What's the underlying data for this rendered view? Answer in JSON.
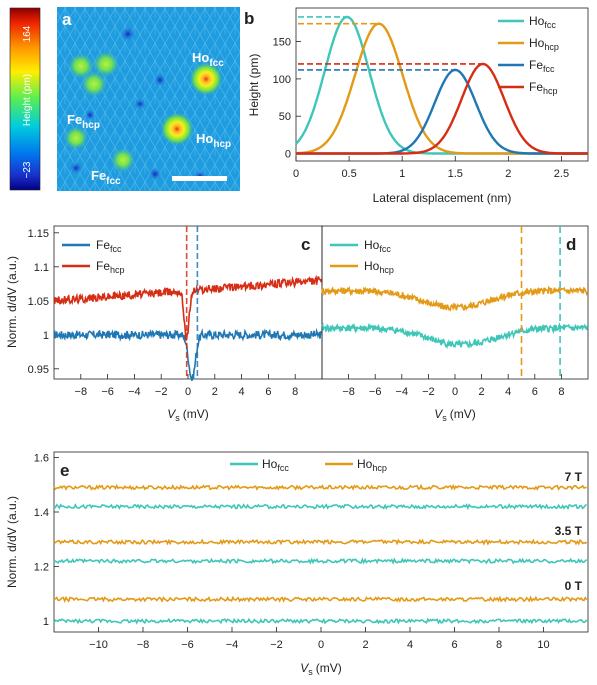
{
  "colors": {
    "ho_fcc": "#3ec6b8",
    "ho_hcp": "#e39a17",
    "fe_fcc": "#1f77b4",
    "fe_hcp": "#d62d14"
  },
  "panel_a": {
    "letter": "a",
    "colorbar": {
      "max": "164",
      "min": "−23",
      "label": "Height (pm)"
    },
    "labels": [
      {
        "main": "Ho",
        "sub": "fcc"
      },
      {
        "main": "Ho",
        "sub": "hcp"
      },
      {
        "main": "Fe",
        "sub": "hcp"
      },
      {
        "main": "Fe",
        "sub": "fcc"
      }
    ]
  },
  "panel_b": {
    "letter": "b",
    "xlabel": "Lateral displacement (nm)",
    "ylabel": "Height (pm)",
    "xticks": [
      "0",
      "0.5",
      "1",
      "1.5",
      "2",
      "2.5"
    ],
    "yticks": [
      "0",
      "50",
      "100",
      "150"
    ]
  },
  "panel_c": {
    "letter": "c",
    "ylabel": "Norm. d/dV (a.u.)",
    "xlabel": "V",
    "xlabel_sub": "s",
    "xlabel_unit": "(mV)",
    "xticks": [
      "−8",
      "−6",
      "−4",
      "−2",
      "0",
      "2",
      "4",
      "6",
      "8"
    ],
    "yticks": [
      "0.95",
      "1",
      "1.05",
      "1.1",
      "1.15"
    ]
  },
  "panel_d": {
    "letter": "d",
    "xlabel": "V",
    "xlabel_sub": "s",
    "xlabel_unit": "(mV)",
    "xticks": [
      "−8",
      "−6",
      "−4",
      "−2",
      "0",
      "2",
      "4",
      "6",
      "8"
    ]
  },
  "panel_e": {
    "letter": "e",
    "ylabel": "Norm. d/dV (a.u.)",
    "xlabel": "V",
    "xlabel_sub": "s",
    "xlabel_unit": "(mV)",
    "xticks": [
      "−10",
      "−8",
      "−6",
      "−4",
      "−2",
      "0",
      "2",
      "4",
      "6",
      "8",
      "10"
    ],
    "yticks": [
      "1",
      "1.2",
      "1.4",
      "1.6"
    ],
    "field_labels": [
      "7 T",
      "3.5 T",
      "0 T"
    ]
  },
  "chart_data": [
    {
      "panel": "b",
      "type": "line",
      "xlabel": "Lateral displacement (nm)",
      "ylabel": "Height (pm)",
      "xlim": [
        0,
        2.75
      ],
      "ylim": [
        -10,
        195
      ],
      "grid": false,
      "legend": "right",
      "series": [
        {
          "name": "Ho_fcc",
          "peak_x": 0.48,
          "peak_y": 183,
          "width": 0.28,
          "base": 0,
          "start_y": 60
        },
        {
          "name": "Ho_hcp",
          "peak_x": 0.78,
          "peak_y": 174,
          "width": 0.3,
          "base": 0,
          "start_y": 18
        },
        {
          "name": "Fe_fcc",
          "peak_x": 1.5,
          "peak_y": 112,
          "width": 0.26,
          "base": 0,
          "start_y": 0
        },
        {
          "name": "Fe_hcp",
          "peak_x": 1.76,
          "peak_y": 120,
          "width": 0.27,
          "base": 0,
          "start_y": 0
        }
      ],
      "dashed_peak_lines": [
        {
          "series": "Ho_fcc",
          "y": 183,
          "x_end": 0.48
        },
        {
          "series": "Ho_hcp",
          "y": 174,
          "x_end": 0.78
        },
        {
          "series": "Fe_fcc",
          "y": 112,
          "x_end": 1.5
        },
        {
          "series": "Fe_hcp",
          "y": 120,
          "x_end": 1.76
        }
      ]
    },
    {
      "panel": "c",
      "type": "line",
      "xlabel": "Vs (mV)",
      "ylabel": "Norm. dI/dV (a.u.)",
      "xlim": [
        -10,
        10
      ],
      "ylim": [
        0.935,
        1.16
      ],
      "legend": "top-left",
      "series": [
        {
          "name": "Fe_fcc",
          "baseline": 1.0,
          "dip_center": 0.3,
          "dip_depth": 0.065,
          "dip_width": 0.35,
          "noise": 0.006
        },
        {
          "name": "Fe_hcp",
          "baseline": 1.065,
          "offset_slope": 0.0015,
          "dip_center": -0.1,
          "dip_depth": 0.07,
          "dip_width": 0.25,
          "noise": 0.006
        }
      ],
      "vlines": [
        {
          "series": "Fe_hcp",
          "x": -0.1,
          "style": "dashed"
        },
        {
          "series": "Fe_fcc",
          "x": 0.7,
          "style": "dashed"
        }
      ]
    },
    {
      "panel": "d",
      "type": "line",
      "xlabel": "Vs (mV)",
      "xlim": [
        -10,
        10
      ],
      "ylim": [
        0.935,
        1.16
      ],
      "legend": "top-left",
      "series": [
        {
          "name": "Ho_fcc",
          "baseline": 1.01,
          "dip_center": 0.5,
          "dip_depth": 0.025,
          "dip_width": 3.5,
          "noise": 0.005
        },
        {
          "name": "Ho_hcp",
          "baseline": 1.065,
          "dip_center": 0.0,
          "dip_depth": 0.025,
          "dip_width": 3.5,
          "noise": 0.005
        }
      ],
      "vlines": [
        {
          "series": "Ho_hcp",
          "x": 5.0,
          "style": "dashed"
        },
        {
          "series": "Ho_fcc",
          "x": 7.9,
          "style": "dashed"
        }
      ]
    },
    {
      "panel": "e",
      "type": "line",
      "xlabel": "Vs (mV)",
      "ylabel": "Norm. dI/dV (a.u.)",
      "xlim": [
        -12,
        12
      ],
      "ylim": [
        0.96,
        1.62
      ],
      "legend": "top-center",
      "series": [
        {
          "name": "Ho_fcc 0 T",
          "baseline": 1.0,
          "noise": 0.006
        },
        {
          "name": "Ho_hcp 0 T",
          "baseline": 1.08,
          "noise": 0.006
        },
        {
          "name": "Ho_fcc 3.5 T",
          "baseline": 1.22,
          "noise": 0.006
        },
        {
          "name": "Ho_hcp 3.5 T",
          "baseline": 1.29,
          "noise": 0.006
        },
        {
          "name": "Ho_fcc 7 T",
          "baseline": 1.42,
          "noise": 0.006
        },
        {
          "name": "Ho_hcp 7 T",
          "baseline": 1.49,
          "noise": 0.006
        }
      ],
      "annotations": [
        "7 T",
        "3.5 T",
        "0 T"
      ]
    }
  ]
}
